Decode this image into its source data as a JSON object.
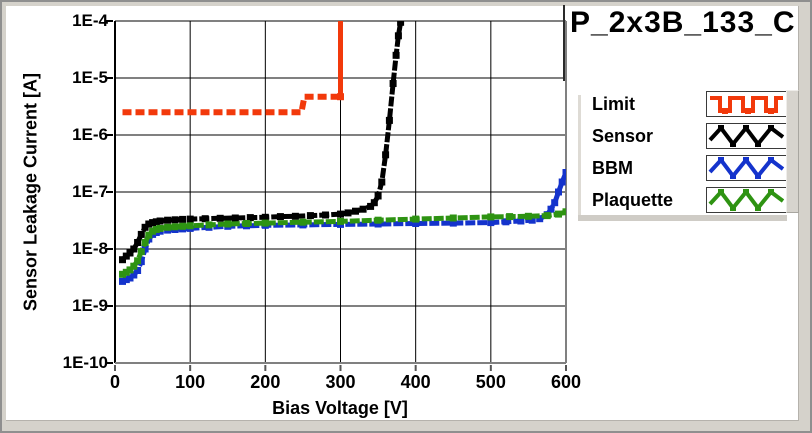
{
  "window": {
    "background": "#D5D2CB",
    "content_background": "#FFFFFF",
    "frame_color": "#8F8F8F"
  },
  "chart_data": {
    "type": "line",
    "title": "P_2x3B_133_C",
    "xlabel": "Bias Voltage [V]",
    "ylabel": "Sensor Leakage Current [A]",
    "xlim": [
      0,
      600
    ],
    "ylim": [
      1e-10,
      0.0001
    ],
    "yscale": "log",
    "grid": true,
    "legend_position": "right",
    "x_ticks": [
      0,
      100,
      200,
      300,
      400,
      500,
      600
    ],
    "y_tick_labels": [
      "1E-4",
      "1E-5",
      "1E-6",
      "1E-7",
      "1E-8",
      "1E-9",
      "1E-10"
    ],
    "series": [
      {
        "key": "limit",
        "legend": "Limit",
        "color": "#F2390B",
        "width": 6,
        "dash": [
          9,
          4
        ],
        "marker_size": 0,
        "points": [
          [
            10,
            2.5e-06
          ],
          [
            248,
            2.5e-06
          ],
          [
            252,
            4.7e-06
          ],
          [
            298,
            4.7e-06
          ]
        ]
      },
      {
        "key": "limit-riser",
        "legend": null,
        "color": "#F2390B",
        "width": 5,
        "dash": null,
        "marker_size": 7,
        "points": [
          [
            300,
            4.7e-06
          ],
          [
            300,
            0.00016
          ]
        ]
      },
      {
        "key": "sensor",
        "legend": "Sensor",
        "color": "#000000",
        "width": 5,
        "dash": [
          10,
          2
        ],
        "marker_size": 7,
        "points": [
          [
            10,
            6.5e-09
          ],
          [
            15,
            7.5e-09
          ],
          [
            20,
            8.5e-09
          ],
          [
            25,
            1e-08
          ],
          [
            30,
            1.3e-08
          ],
          [
            35,
            1.8e-08
          ],
          [
            40,
            2.4e-08
          ],
          [
            45,
            2.75e-08
          ],
          [
            50,
            2.9e-08
          ],
          [
            55,
            3e-08
          ],
          [
            60,
            3.1e-08
          ],
          [
            70,
            3.2e-08
          ],
          [
            80,
            3.25e-08
          ],
          [
            90,
            3.3e-08
          ],
          [
            100,
            3.35e-08
          ],
          [
            120,
            3.4e-08
          ],
          [
            140,
            3.45e-08
          ],
          [
            160,
            3.5e-08
          ],
          [
            180,
            3.55e-08
          ],
          [
            200,
            3.6e-08
          ],
          [
            220,
            3.7e-08
          ],
          [
            240,
            3.75e-08
          ],
          [
            260,
            3.85e-08
          ],
          [
            280,
            3.95e-08
          ],
          [
            300,
            4.1e-08
          ],
          [
            310,
            4.3e-08
          ],
          [
            320,
            4.6e-08
          ],
          [
            330,
            5e-08
          ],
          [
            340,
            5.6e-08
          ],
          [
            345,
            6.5e-08
          ],
          [
            350,
            8.5e-08
          ],
          [
            355,
            1.5e-07
          ],
          [
            360,
            4.5e-07
          ],
          [
            365,
            1.8e-06
          ],
          [
            370,
            8e-06
          ],
          [
            374,
            2.5e-05
          ],
          [
            377,
            5.5e-05
          ],
          [
            380,
            9.5e-05
          ]
        ]
      },
      {
        "key": "bbm",
        "legend": "BBM",
        "color": "#1433CC",
        "width": 5,
        "dash": [
          10,
          2
        ],
        "marker_size": 7,
        "points": [
          [
            10,
            2.7e-09
          ],
          [
            15,
            2.9e-09
          ],
          [
            20,
            3.1e-09
          ],
          [
            25,
            3.5e-09
          ],
          [
            30,
            4.2e-09
          ],
          [
            35,
            6e-09
          ],
          [
            40,
            1e-08
          ],
          [
            45,
            1.5e-08
          ],
          [
            50,
            1.8e-08
          ],
          [
            55,
            1.95e-08
          ],
          [
            60,
            2.05e-08
          ],
          [
            70,
            2.15e-08
          ],
          [
            80,
            2.2e-08
          ],
          [
            90,
            2.25e-08
          ],
          [
            100,
            2.3e-08
          ],
          [
            125,
            2.4e-08
          ],
          [
            150,
            2.5e-08
          ],
          [
            175,
            2.55e-08
          ],
          [
            200,
            2.6e-08
          ],
          [
            250,
            2.65e-08
          ],
          [
            300,
            2.7e-08
          ],
          [
            350,
            2.75e-08
          ],
          [
            400,
            2.8e-08
          ],
          [
            450,
            2.85e-08
          ],
          [
            500,
            2.9e-08
          ],
          [
            520,
            3e-08
          ],
          [
            540,
            3.1e-08
          ],
          [
            555,
            3.2e-08
          ],
          [
            565,
            3.4e-08
          ],
          [
            575,
            4e-08
          ],
          [
            580,
            5e-08
          ],
          [
            585,
            6.5e-08
          ],
          [
            590,
            1e-07
          ],
          [
            595,
            1.5e-07
          ],
          [
            600,
            2.2e-07
          ]
        ]
      },
      {
        "key": "plaquette",
        "legend": "Plaquette",
        "color": "#2E9312",
        "width": 5,
        "dash": [
          10,
          2
        ],
        "marker_size": 7,
        "points": [
          [
            10,
            3.6e-09
          ],
          [
            15,
            3.9e-09
          ],
          [
            20,
            4.3e-09
          ],
          [
            25,
            5e-09
          ],
          [
            30,
            6.2e-09
          ],
          [
            35,
            9e-09
          ],
          [
            40,
            1.3e-08
          ],
          [
            45,
            1.75e-08
          ],
          [
            50,
            2.05e-08
          ],
          [
            55,
            2.2e-08
          ],
          [
            60,
            2.3e-08
          ],
          [
            70,
            2.4e-08
          ],
          [
            80,
            2.45e-08
          ],
          [
            90,
            2.5e-08
          ],
          [
            100,
            2.55e-08
          ],
          [
            125,
            2.65e-08
          ],
          [
            150,
            2.75e-08
          ],
          [
            175,
            2.8e-08
          ],
          [
            200,
            2.85e-08
          ],
          [
            250,
            2.95e-08
          ],
          [
            300,
            3.05e-08
          ],
          [
            350,
            3.2e-08
          ],
          [
            400,
            3.35e-08
          ],
          [
            450,
            3.5e-08
          ],
          [
            500,
            3.65e-08
          ],
          [
            525,
            3.7e-08
          ],
          [
            550,
            3.75e-08
          ],
          [
            575,
            3.85e-08
          ],
          [
            590,
            4.1e-08
          ],
          [
            600,
            4.5e-08
          ]
        ]
      }
    ]
  },
  "legend": {
    "items": [
      {
        "label": "Limit",
        "wave": "square",
        "color": "#F2390B"
      },
      {
        "label": "Sensor",
        "wave": "triangle",
        "color": "#000000"
      },
      {
        "label": "BBM",
        "wave": "triangle",
        "color": "#1433CC"
      },
      {
        "label": "Plaquette",
        "wave": "triangle",
        "color": "#2E9312"
      }
    ]
  }
}
